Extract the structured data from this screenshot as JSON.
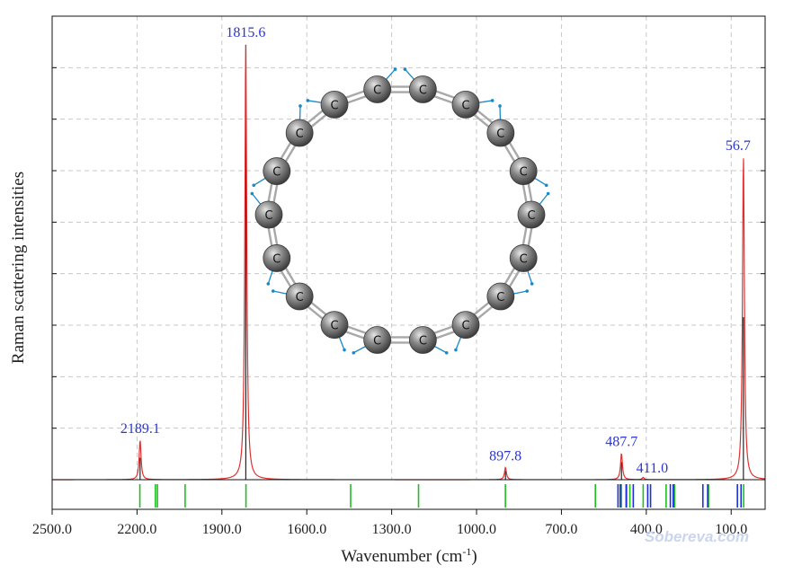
{
  "chart_data": {
    "type": "line",
    "xlabel": "Wavenumber (cm",
    "xlabel_sup": "-1",
    "xlabel_end": ")",
    "ylabel": "Raman scattering intensities",
    "xlim": [
      2500,
      -20
    ],
    "x_reversed": true,
    "x_ticks": [
      "2500.0",
      "2200.0",
      "1900.0",
      "1600.0",
      "1300.0",
      "1000.0",
      "700.0",
      "400.0",
      "100.0"
    ],
    "x_tick_values": [
      2500,
      2200,
      1900,
      1600,
      1300,
      1000,
      700,
      400,
      100
    ],
    "grid": true,
    "ylim": [
      0,
      1.0
    ],
    "peaks": [
      {
        "x": 2189.1,
        "y": 0.09,
        "label": "2189.1"
      },
      {
        "x": 1815.6,
        "y": 1.0,
        "label": "1815.6"
      },
      {
        "x": 897.8,
        "y": 0.028,
        "label": "897.8"
      },
      {
        "x": 487.7,
        "y": 0.06,
        "label": "487.7"
      },
      {
        "x": 411.0,
        "y": 0.005,
        "label": "411.0"
      },
      {
        "x": 56.7,
        "y": 0.74,
        "label": "56.7"
      }
    ],
    "sticks": [
      {
        "x": 2189.1,
        "y": 0.05
      },
      {
        "x": 1815.6,
        "y": 0.99
      },
      {
        "x": 897.8,
        "y": 0.02
      },
      {
        "x": 487.7,
        "y": 0.04
      },
      {
        "x": 56.7,
        "y": 0.37
      }
    ],
    "hwhm": 4,
    "modes_green": [
      2190,
      2135,
      2128,
      2030,
      1815,
      1445,
      1205,
      898,
      580,
      488,
      472,
      458,
      411,
      330,
      300,
      180,
      56
    ],
    "modes_blue": [
      500,
      492,
      470,
      446,
      395,
      385,
      315,
      305,
      200,
      183,
      78,
      65
    ],
    "colors": {
      "spectrum": "#e03131",
      "stick": "#111111",
      "mode_green": "#1fbf1f",
      "mode_blue": "#1a2de0",
      "grid": "#c8c8c8",
      "label": "#2a35d6",
      "atom": "#6e6e6e",
      "bond": "#a8a8a8",
      "vector": "#1a88c9"
    },
    "molecule": {
      "atom_count": 18,
      "atom_label": "C"
    }
  },
  "watermark": "Sobereva.com"
}
